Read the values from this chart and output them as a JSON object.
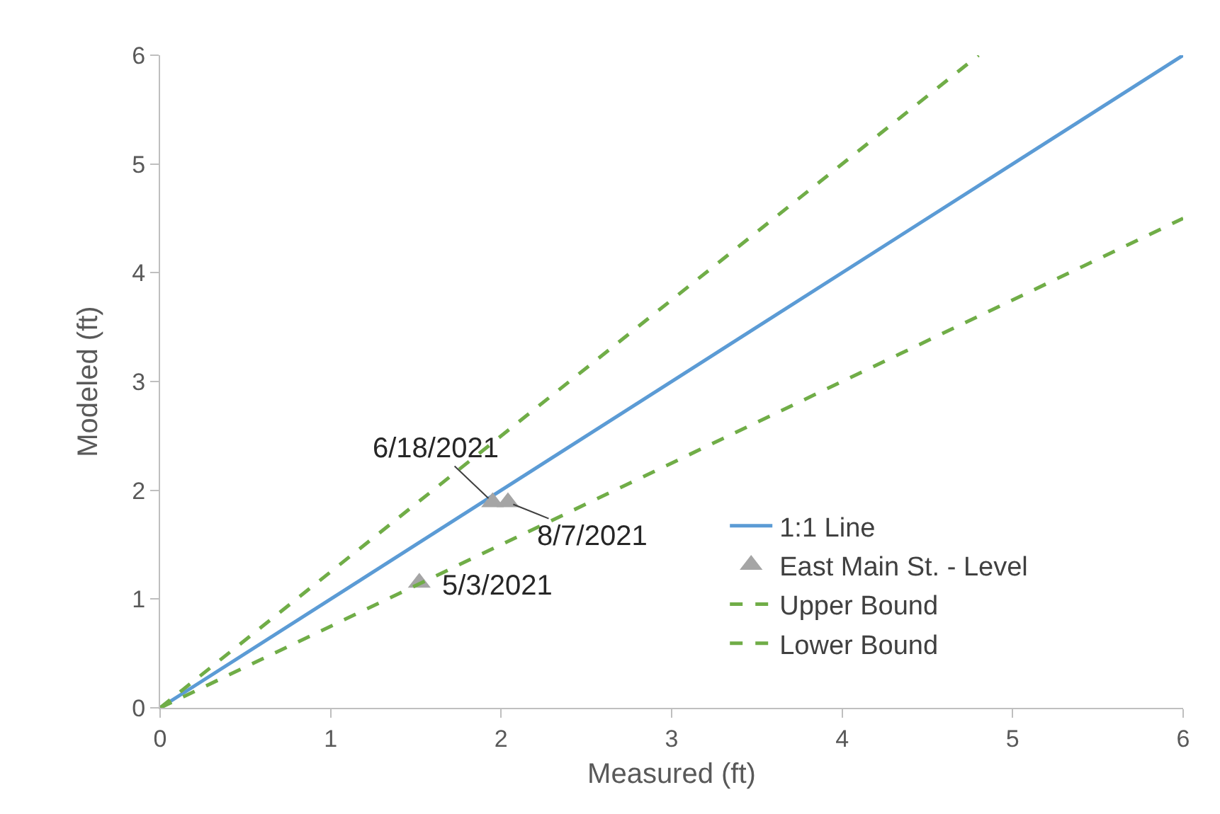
{
  "chart_data": {
    "type": "line",
    "xlabel": "Measured (ft)",
    "ylabel": "Modeled (ft)",
    "xlim": [
      0,
      6
    ],
    "ylim": [
      0,
      6
    ],
    "xticks": [
      0,
      1,
      2,
      3,
      4,
      5,
      6
    ],
    "yticks": [
      0,
      1,
      2,
      3,
      4,
      5,
      6
    ],
    "legend": "bottom right",
    "series": [
      {
        "name": "1:1 Line",
        "color": "#5b9bd5",
        "line_style": "solid",
        "marker": "none",
        "x": [
          0,
          6
        ],
        "values": [
          0,
          6
        ]
      },
      {
        "name": "East Main St. - Level",
        "type": "scatter",
        "color": "#a5a5a5",
        "marker": "triangle",
        "x": [
          1.52,
          1.95,
          2.04
        ],
        "values": [
          1.15,
          1.89,
          1.89
        ]
      },
      {
        "name": "Upper Bound",
        "color": "#70ad47",
        "line_style": "dashed",
        "marker": "none",
        "x": [
          0,
          4.8
        ],
        "values": [
          0,
          6
        ]
      },
      {
        "name": "Lower Bound",
        "color": "#70ad47",
        "line_style": "dashed",
        "marker": "none",
        "x": [
          0,
          6
        ],
        "values": [
          0,
          4.5
        ]
      }
    ],
    "annotations": [
      {
        "text": "6/18/2021",
        "x": 1.95,
        "y": 1.89
      },
      {
        "text": "8/7/2021",
        "x": 2.04,
        "y": 1.89
      },
      {
        "text": "5/3/2021",
        "x": 1.52,
        "y": 1.15
      }
    ]
  }
}
